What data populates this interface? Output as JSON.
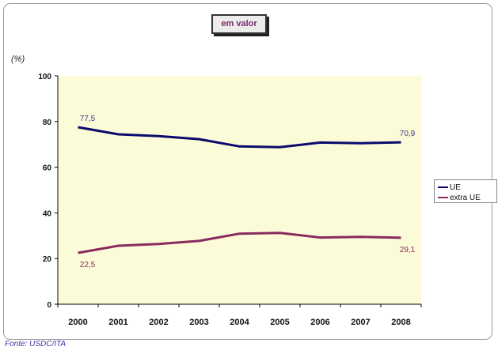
{
  "title": "em valor",
  "unit_label": "(%)",
  "source": "Fonte: USDC/ITA",
  "colors": {
    "UE": "#0a0a6e",
    "extra UE": "#8a2a5f",
    "plot_bg": "#fcfbd8",
    "label_UE": "#3a3a8a",
    "label_extra": "#8a2a5f"
  },
  "chart_data": {
    "type": "line",
    "x": [
      "2000",
      "2001",
      "2002",
      "2003",
      "2004",
      "2005",
      "2006",
      "2007",
      "2008"
    ],
    "series": [
      {
        "name": "UE",
        "values": [
          77.5,
          74.4,
          73.6,
          72.3,
          69.1,
          68.8,
          70.8,
          70.5,
          70.9
        ]
      },
      {
        "name": "extra UE",
        "values": [
          22.5,
          25.6,
          26.4,
          27.7,
          30.9,
          31.2,
          29.2,
          29.5,
          29.1
        ]
      }
    ],
    "data_labels": [
      {
        "series": "UE",
        "x": "2000",
        "text": "77,5"
      },
      {
        "series": "UE",
        "x": "2008",
        "text": "70,9"
      },
      {
        "series": "extra UE",
        "x": "2000",
        "text": "22,5"
      },
      {
        "series": "extra UE",
        "x": "2008",
        "text": "29,1"
      }
    ],
    "y_ticks": [
      "0",
      "20",
      "40",
      "60",
      "80",
      "100"
    ],
    "ylim": [
      0,
      100
    ],
    "grid": false,
    "legend_position": "right"
  }
}
